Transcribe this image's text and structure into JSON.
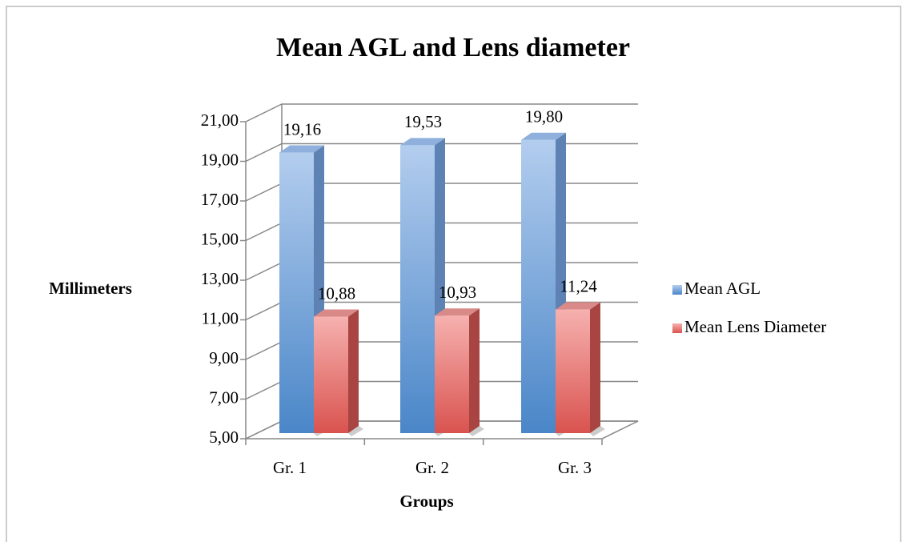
{
  "chart_data": {
    "type": "bar3d",
    "title": "Mean AGL and Lens diameter",
    "x_label": "Groups",
    "y_label": "Millimeters",
    "categories": [
      "Gr. 1",
      "Gr. 2",
      "Gr. 3"
    ],
    "series": [
      {
        "name": "Mean AGL",
        "color": "#4a86c8",
        "values": [
          19.16,
          19.53,
          19.8
        ],
        "value_labels": [
          "19,16",
          "19,53",
          "19,80"
        ]
      },
      {
        "name": "Mean Lens Diameter",
        "color": "#d9534f",
        "values": [
          10.88,
          10.93,
          11.24
        ],
        "value_labels": [
          "10,88",
          "10,93",
          "11,24"
        ]
      }
    ],
    "ylim": [
      5,
      21
    ],
    "yticks": [
      {
        "value": 5,
        "label": "5,00"
      },
      {
        "value": 7,
        "label": "7,00"
      },
      {
        "value": 9,
        "label": "9,00"
      },
      {
        "value": 11,
        "label": "11,00"
      },
      {
        "value": 13,
        "label": "13,00"
      },
      {
        "value": 15,
        "label": "15,00"
      },
      {
        "value": 17,
        "label": "17,00"
      },
      {
        "value": 19,
        "label": "19,00"
      },
      {
        "value": 21,
        "label": "21,00"
      }
    ],
    "grid": true,
    "legend": "right"
  }
}
